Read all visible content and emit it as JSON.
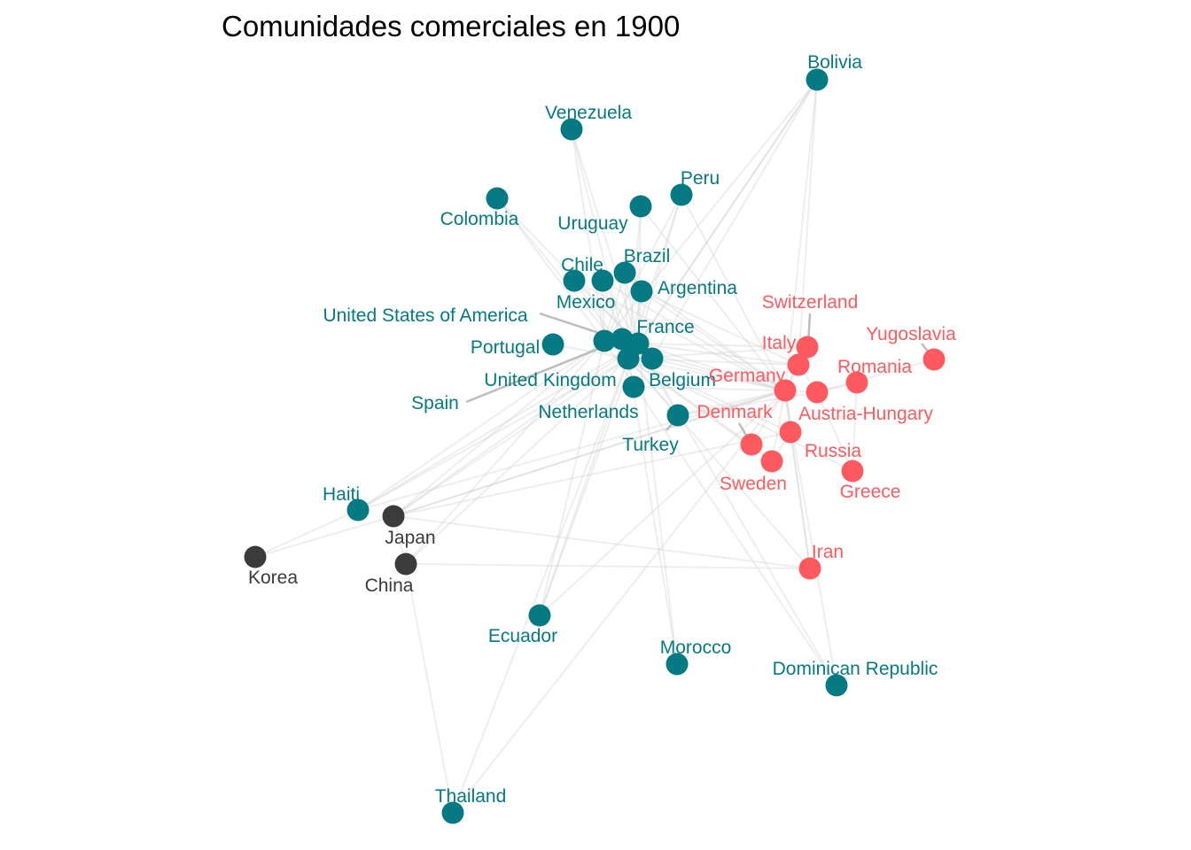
{
  "title": "Comunidades comerciales en 1900",
  "colors": {
    "community-1": "#067a83",
    "community-2": "#ff5a5f",
    "community-3": "#3b3b3b"
  },
  "nodes": [
    {
      "id": "bolivia",
      "label": "Bolivia",
      "community": "community-1"
    },
    {
      "id": "venezuela",
      "label": "Venezuela",
      "community": "community-1"
    },
    {
      "id": "peru",
      "label": "Peru",
      "community": "community-1"
    },
    {
      "id": "colombia",
      "label": "Colombia",
      "community": "community-1"
    },
    {
      "id": "uruguay",
      "label": "Uruguay",
      "community": "community-1"
    },
    {
      "id": "brazil",
      "label": "Brazil",
      "community": "community-1"
    },
    {
      "id": "chile",
      "label": "Chile",
      "community": "community-1"
    },
    {
      "id": "mexico",
      "label": "Mexico",
      "community": "community-1"
    },
    {
      "id": "argentina",
      "label": "Argentina",
      "community": "community-1"
    },
    {
      "id": "usa",
      "label": "United States of America",
      "community": "community-1"
    },
    {
      "id": "france",
      "label": "France",
      "community": "community-1"
    },
    {
      "id": "portugal",
      "label": "Portugal",
      "community": "community-1"
    },
    {
      "id": "spain",
      "label": "Spain",
      "community": "community-1"
    },
    {
      "id": "uk",
      "label": "United Kingdom",
      "community": "community-1"
    },
    {
      "id": "belgium",
      "label": "Belgium",
      "community": "community-1"
    },
    {
      "id": "netherlands",
      "label": "Netherlands",
      "community": "community-1"
    },
    {
      "id": "turkey",
      "label": "Turkey",
      "community": "community-1"
    },
    {
      "id": "haiti",
      "label": "Haiti",
      "community": "community-1"
    },
    {
      "id": "ecuador",
      "label": "Ecuador",
      "community": "community-1"
    },
    {
      "id": "morocco",
      "label": "Morocco",
      "community": "community-1"
    },
    {
      "id": "dominican",
      "label": "Dominican Republic",
      "community": "community-1"
    },
    {
      "id": "thailand",
      "label": "Thailand",
      "community": "community-1"
    },
    {
      "id": "switzerland",
      "label": "Switzerland",
      "community": "community-2"
    },
    {
      "id": "yugoslavia",
      "label": "Yugoslavia",
      "community": "community-2"
    },
    {
      "id": "italy",
      "label": "Italy",
      "community": "community-2"
    },
    {
      "id": "romania",
      "label": "Romania",
      "community": "community-2"
    },
    {
      "id": "germany",
      "label": "Germany",
      "community": "community-2"
    },
    {
      "id": "austria",
      "label": "Austria-Hungary",
      "community": "community-2"
    },
    {
      "id": "denmark",
      "label": "Denmark",
      "community": "community-2"
    },
    {
      "id": "russia",
      "label": "Russia",
      "community": "community-2"
    },
    {
      "id": "sweden",
      "label": "Sweden",
      "community": "community-2"
    },
    {
      "id": "greece",
      "label": "Greece",
      "community": "community-2"
    },
    {
      "id": "iran",
      "label": "Iran",
      "community": "community-2"
    },
    {
      "id": "japan",
      "label": "Japan",
      "community": "community-3"
    },
    {
      "id": "korea",
      "label": "Korea",
      "community": "community-3"
    },
    {
      "id": "china",
      "label": "China",
      "community": "community-3"
    }
  ],
  "edges": [
    [
      "uk",
      "bolivia"
    ],
    [
      "france",
      "bolivia"
    ],
    [
      "germany",
      "bolivia"
    ],
    [
      "usa",
      "bolivia"
    ],
    [
      "belgium",
      "bolivia"
    ],
    [
      "uk",
      "venezuela"
    ],
    [
      "france",
      "venezuela"
    ],
    [
      "usa",
      "venezuela"
    ],
    [
      "uk",
      "peru"
    ],
    [
      "france",
      "peru"
    ],
    [
      "germany",
      "peru"
    ],
    [
      "usa",
      "peru"
    ],
    [
      "uk",
      "colombia"
    ],
    [
      "france",
      "colombia"
    ],
    [
      "usa",
      "colombia"
    ],
    [
      "uk",
      "uruguay"
    ],
    [
      "france",
      "uruguay"
    ],
    [
      "germany",
      "uruguay"
    ],
    [
      "uk",
      "brazil"
    ],
    [
      "france",
      "brazil"
    ],
    [
      "germany",
      "brazil"
    ],
    [
      "usa",
      "brazil"
    ],
    [
      "uk",
      "chile"
    ],
    [
      "france",
      "chile"
    ],
    [
      "germany",
      "chile"
    ],
    [
      "uk",
      "mexico"
    ],
    [
      "usa",
      "mexico"
    ],
    [
      "france",
      "mexico"
    ],
    [
      "germany",
      "mexico"
    ],
    [
      "uk",
      "argentina"
    ],
    [
      "france",
      "argentina"
    ],
    [
      "germany",
      "argentina"
    ],
    [
      "italy",
      "argentina"
    ],
    [
      "uk",
      "france"
    ],
    [
      "uk",
      "usa"
    ],
    [
      "uk",
      "germany"
    ],
    [
      "france",
      "germany"
    ],
    [
      "usa",
      "germany"
    ],
    [
      "uk",
      "belgium"
    ],
    [
      "france",
      "belgium"
    ],
    [
      "germany",
      "belgium"
    ],
    [
      "uk",
      "netherlands"
    ],
    [
      "germany",
      "netherlands"
    ],
    [
      "uk",
      "portugal"
    ],
    [
      "uk",
      "spain"
    ],
    [
      "france",
      "spain"
    ],
    [
      "uk",
      "turkey"
    ],
    [
      "france",
      "turkey"
    ],
    [
      "germany",
      "turkey"
    ],
    [
      "austria",
      "turkey"
    ],
    [
      "uk",
      "italy"
    ],
    [
      "france",
      "italy"
    ],
    [
      "germany",
      "italy"
    ],
    [
      "switzerland",
      "italy"
    ],
    [
      "germany",
      "switzerland"
    ],
    [
      "france",
      "switzerland"
    ],
    [
      "austria",
      "germany"
    ],
    [
      "austria",
      "italy"
    ],
    [
      "austria",
      "romania"
    ],
    [
      "austria",
      "yugoslavia"
    ],
    [
      "germany",
      "russia"
    ],
    [
      "uk",
      "russia"
    ],
    [
      "germany",
      "denmark"
    ],
    [
      "germany",
      "sweden"
    ],
    [
      "uk",
      "denmark"
    ],
    [
      "uk",
      "sweden"
    ],
    [
      "russia",
      "sweden"
    ],
    [
      "uk",
      "greece"
    ],
    [
      "austria",
      "greece"
    ],
    [
      "romania",
      "greece"
    ],
    [
      "russia",
      "iran"
    ],
    [
      "uk",
      "iran"
    ],
    [
      "germany",
      "iran"
    ],
    [
      "uk",
      "japan"
    ],
    [
      "usa",
      "japan"
    ],
    [
      "france",
      "japan"
    ],
    [
      "germany",
      "japan"
    ],
    [
      "uk",
      "china"
    ],
    [
      "usa",
      "china"
    ],
    [
      "japan",
      "china"
    ],
    [
      "japan",
      "korea"
    ],
    [
      "china",
      "iran"
    ],
    [
      "uk",
      "haiti"
    ],
    [
      "usa",
      "haiti"
    ],
    [
      "france",
      "haiti"
    ],
    [
      "germany",
      "haiti"
    ],
    [
      "uk",
      "ecuador"
    ],
    [
      "france",
      "ecuador"
    ],
    [
      "germany",
      "ecuador"
    ],
    [
      "usa",
      "ecuador"
    ],
    [
      "france",
      "morocco"
    ],
    [
      "uk",
      "morocco"
    ],
    [
      "usa",
      "dominican"
    ],
    [
      "france",
      "dominican"
    ],
    [
      "germany",
      "dominican"
    ],
    [
      "uk",
      "thailand"
    ],
    [
      "china",
      "thailand"
    ],
    [
      "germany",
      "thailand"
    ],
    [
      "japan",
      "iran"
    ],
    [
      "japan",
      "germany"
    ],
    [
      "japan",
      "russia"
    ],
    [
      "haiti",
      "korea"
    ],
    [
      "italy",
      "bolivia"
    ],
    [
      "uk",
      "switzerland"
    ]
  ]
}
